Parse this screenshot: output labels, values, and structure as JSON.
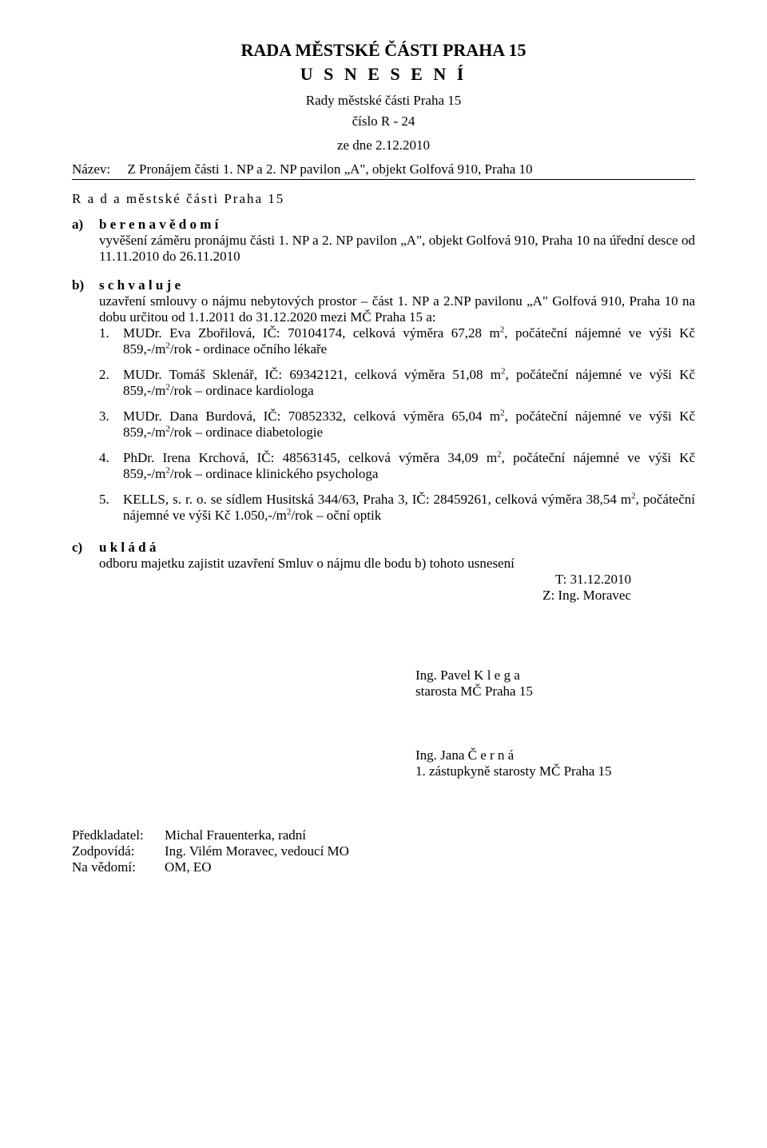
{
  "header": {
    "authority": "RADA  MĚSTSKÉ ČÁSTI  PRAHA  15",
    "doc_type": "U S N E S E N Í",
    "subtitle": "Rady městské části Praha 15",
    "number_line": "číslo R - 24",
    "date_line": "ze dne 2.12.2010"
  },
  "name_row": {
    "label": "Název:",
    "value": "Z Pronájem části 1. NP a 2. NP pavilon „A\", objekt Golfová 910, Praha 10"
  },
  "section_head": "R a d a    městské části  Praha  15",
  "point_a": {
    "letter": "a)",
    "heading": "b e r e   n a   v ě d o m í",
    "text": "vyvěšení  záměru  pronájmu  části 1. NP a  2. NP  pavilon „A\", objekt  Golfová  910, Praha 10 na úřední desce od 11.11.2010 do 26.11.2010"
  },
  "point_b": {
    "letter": "b)",
    "heading": "s c h v a l u j e",
    "intro": "uzavření  smlouvy   o   nájmu  nebytových  prostor – část  1.  NP a 2.NP pavilonu „A\" Golfová 910, Praha 10  na dobu určitou od 1.1.2011 do 31.12.2020 mezi MČ Praha 15 a:",
    "items": [
      {
        "n": "1.",
        "html": "MUDr.  Eva  Zbořilová,  IČ:   70104174,  celková  výměra    67,28  m<sup>2</sup>,    počáteční nájemné ve výši  Kč 859,-/m<sup>2</sup>/rok -  ordinace očního  lékaře"
      },
      {
        "n": "2.",
        "html": "MUDr.  Tomáš  Sklenář,  IČ:  69342121,   celková   výměra   51,08  m<sup>2</sup>,   počáteční nájemné ve výši Kč 859,-/m<sup>2</sup>/rok – ordinace kardiologa"
      },
      {
        "n": "3.",
        "html": "MUDr.  Dana  Burdová,  IČ:  70852332,   celková   výměra   65,04  m<sup>2</sup>,   počáteční nájemné   ve   výši  Kč 859,-/m<sup>2</sup>/rok   –    ordinace  diabetologie"
      },
      {
        "n": "4.",
        "html": "PhDr.  Irena   Krchová,   IČ:  48563145,   celková   výměra   34,09  m<sup>2</sup>,   počáteční nájemné   ve   výši  Kč 859,-/m<sup>2</sup>/rok   –    ordinace   klinického psychologa"
      },
      {
        "n": "5.",
        "html": "KELLS, s.  r.  o.  se  sídlem   Husitská    344/63,  Praha  3,   IČ:   28459261,   celková výměra  38,54 m<sup>2</sup>, počáteční nájemné ve výši Kč 1.050,-/m<sup>2</sup>/rok – oční optik"
      }
    ]
  },
  "point_c": {
    "letter": "c)",
    "heading": "u k l á d á",
    "line1": "odboru majetku zajistit uzavření Smluv o nájmu dle bodu b)  tohoto usnesení",
    "line2": "T: 31.12.2010",
    "line3": "Z: Ing. Moravec"
  },
  "signatures": {
    "sig1_name": "Ing. Pavel  K l e g a",
    "sig1_title": "starosta MČ Praha 15",
    "sig2_name": "Ing. Jana  Č e r n á",
    "sig2_title": "1. zástupkyně starosty MČ Praha 15"
  },
  "footer": {
    "l1_label": "Předkladatel:",
    "l1_value": "Michal Frauenterka, radní",
    "l2_label": "Zodpovídá:",
    "l2_value": "Ing. Vilém Moravec, vedoucí MO",
    "l3_label": "Na vědomí:",
    "l3_value": "OM, EO"
  }
}
